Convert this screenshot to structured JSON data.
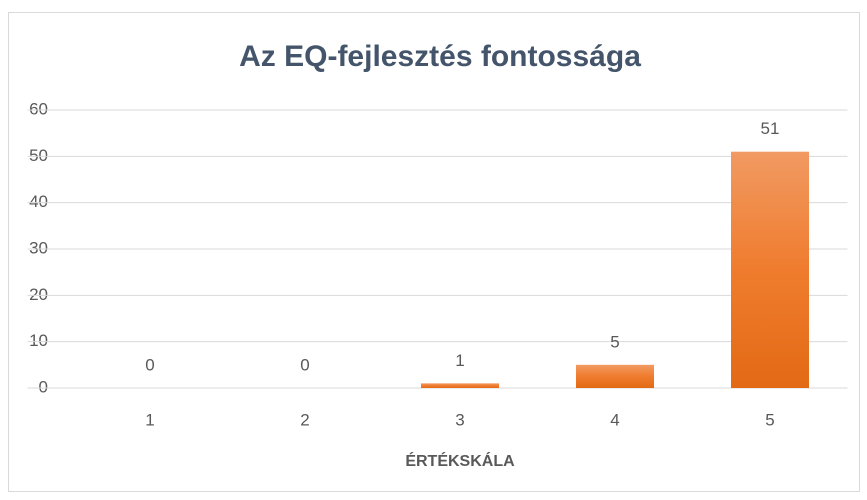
{
  "chart_data": {
    "type": "bar",
    "title": "Az EQ-fejlesztés fontossága",
    "x_label": "ÉRTÉKSKÁLA",
    "categories": [
      "1",
      "2",
      "3",
      "4",
      "5"
    ],
    "values": [
      0,
      0,
      1,
      5,
      51
    ],
    "color": "#ed7d31",
    "ylim": [
      0,
      60
    ],
    "yticks": [
      0,
      10,
      20,
      30,
      40,
      50,
      60
    ],
    "grid": true
  }
}
